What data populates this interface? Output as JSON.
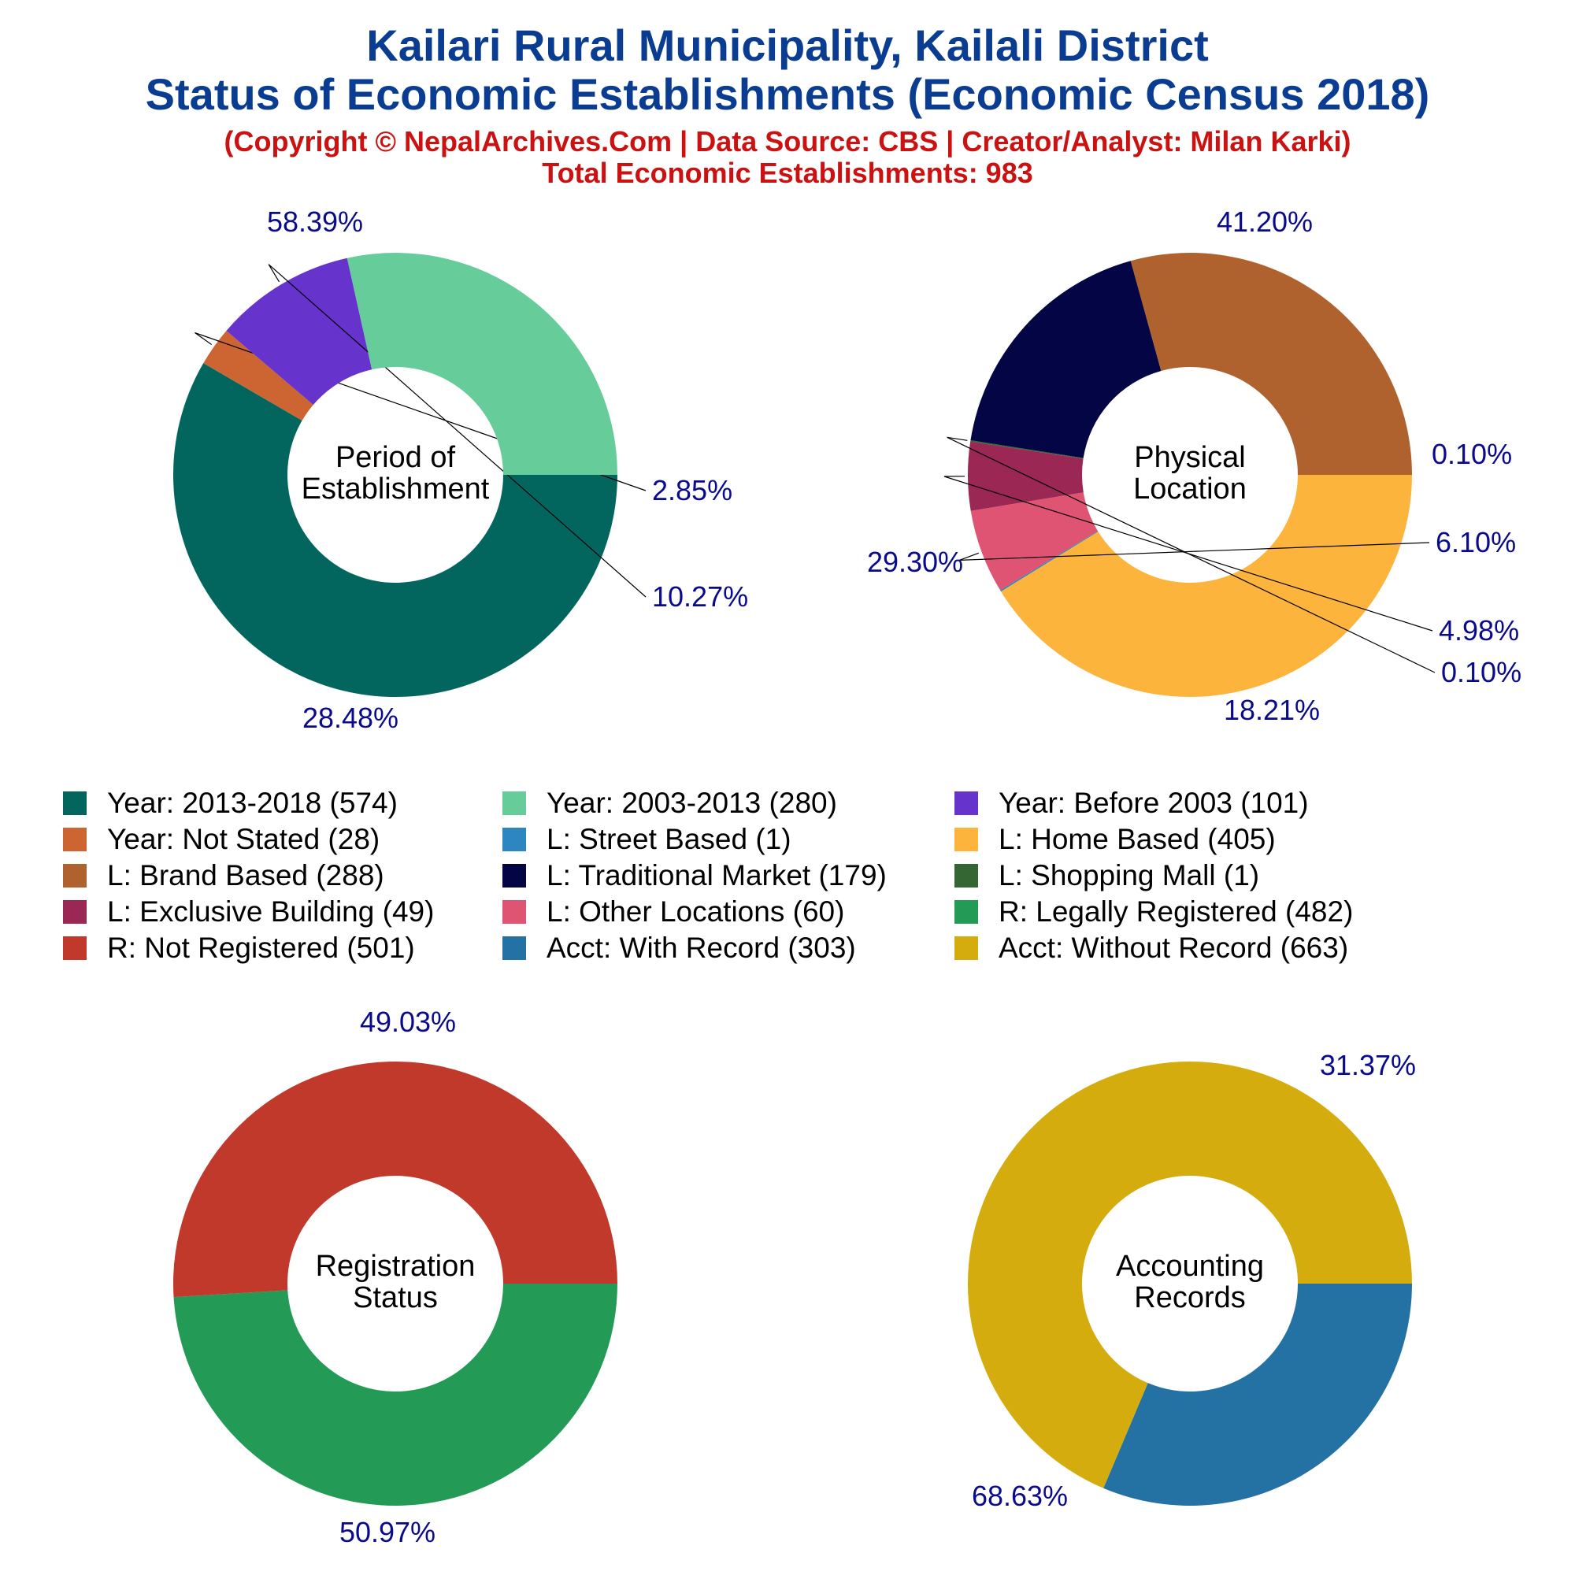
{
  "header": {
    "title_line1": "Kailari Rural Municipality, Kailali District",
    "title_line2": "Status of Economic Establishments (Economic Census 2018)",
    "copyright": "(Copyright © NepalArchives.Com | Data Source: CBS | Creator/Analyst: Milan Karki)",
    "total": "Total Economic Establishments: 983"
  },
  "colors": {
    "title": "#0a3d91",
    "subtitle": "#cc1111",
    "percent_label": "#0a0a8c"
  },
  "chart_data": [
    {
      "type": "pie",
      "style": "donut",
      "center_label": [
        "Period of",
        "Establishment"
      ],
      "slices": [
        {
          "label": "Year: 2013-2018",
          "count": 574,
          "percent": "58.39%",
          "color": "#02665f"
        },
        {
          "label": "Year: Not Stated",
          "count": 28,
          "percent": "2.85%",
          "color": "#cd6532"
        },
        {
          "label": "Year: Before 2003",
          "count": 101,
          "percent": "10.27%",
          "color": "#6633cc"
        },
        {
          "label": "Year: 2003-2013",
          "count": 280,
          "percent": "28.48%",
          "color": "#66cc99"
        }
      ]
    },
    {
      "type": "pie",
      "style": "donut",
      "center_label": [
        "Physical",
        "Location"
      ],
      "slices": [
        {
          "label": "L: Home Based",
          "count": 405,
          "percent": "41.20%",
          "color": "#fdb43c"
        },
        {
          "label": "L: Street Based",
          "count": 1,
          "percent": "0.10%",
          "color": "#2e86c1"
        },
        {
          "label": "L: Other Locations",
          "count": 60,
          "percent": "6.10%",
          "color": "#e05473"
        },
        {
          "label": "L: Exclusive Building",
          "count": 49,
          "percent": "4.98%",
          "color": "#9b2754"
        },
        {
          "label": "L: Shopping Mall",
          "count": 1,
          "percent": "0.10%",
          "color": "#336633"
        },
        {
          "label": "L: Traditional Market",
          "count": 179,
          "percent": "18.21%",
          "color": "#030545"
        },
        {
          "label": "L: Brand Based",
          "count": 288,
          "percent": "29.30%",
          "color": "#b0622e"
        }
      ]
    },
    {
      "type": "pie",
      "style": "donut",
      "center_label": [
        "Registration",
        "Status"
      ],
      "slices": [
        {
          "label": "R: Legally Registered",
          "count": 482,
          "percent": "49.03%",
          "color": "#239b56"
        },
        {
          "label": "R: Not Registered",
          "count": 501,
          "percent": "50.97%",
          "color": "#c0392b"
        }
      ]
    },
    {
      "type": "pie",
      "style": "donut",
      "center_label": [
        "Accounting",
        "Records"
      ],
      "slices": [
        {
          "label": "Acct: With Record",
          "count": 303,
          "percent": "31.37%",
          "color": "#2471a3"
        },
        {
          "label": "Acct: Without Record",
          "count": 663,
          "percent": "68.63%",
          "color": "#d4ac0d"
        }
      ]
    }
  ],
  "legend": [
    {
      "text": "Year: 2013-2018 (574)",
      "color": "#02665f"
    },
    {
      "text": "Year: 2003-2013 (280)",
      "color": "#66cc99"
    },
    {
      "text": "Year: Before 2003 (101)",
      "color": "#6633cc"
    },
    {
      "text": "Year: Not Stated (28)",
      "color": "#cd6532"
    },
    {
      "text": "L: Street Based (1)",
      "color": "#2e86c1"
    },
    {
      "text": "L: Home Based (405)",
      "color": "#fdb43c"
    },
    {
      "text": "L: Brand Based (288)",
      "color": "#b0622e"
    },
    {
      "text": "L: Traditional Market (179)",
      "color": "#030545"
    },
    {
      "text": "L: Shopping Mall (1)",
      "color": "#336633"
    },
    {
      "text": "L: Exclusive Building (49)",
      "color": "#9b2754"
    },
    {
      "text": "L: Other Locations (60)",
      "color": "#e05473"
    },
    {
      "text": "R: Legally Registered (482)",
      "color": "#239b56"
    },
    {
      "text": "R: Not Registered (501)",
      "color": "#c0392b"
    },
    {
      "text": "Acct: With Record (303)",
      "color": "#2471a3"
    },
    {
      "text": "Acct: Without Record (663)",
      "color": "#d4ac0d"
    }
  ]
}
